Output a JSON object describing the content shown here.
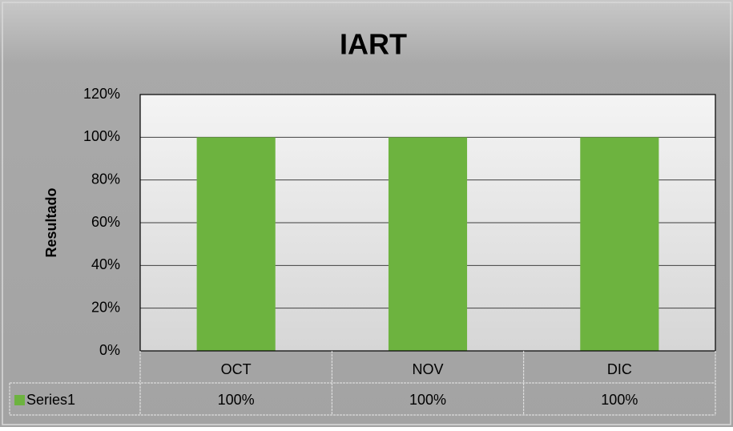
{
  "chart_data": {
    "type": "bar",
    "title": "IART",
    "ylabel": "Resultado",
    "categories": [
      "OCT",
      "NOV",
      "DIC"
    ],
    "series": [
      {
        "name": "Series1",
        "color": "#6db33f",
        "values": [
          100,
          100,
          100
        ],
        "value_labels": [
          "100%",
          "100%",
          "100%"
        ]
      }
    ],
    "ylim": [
      0,
      120
    ],
    "yticks": [
      {
        "value": 0,
        "label": "0%"
      },
      {
        "value": 20,
        "label": "20%"
      },
      {
        "value": 40,
        "label": "40%"
      },
      {
        "value": 60,
        "label": "60%"
      },
      {
        "value": 80,
        "label": "80%"
      },
      {
        "value": 100,
        "label": "100%"
      },
      {
        "value": 120,
        "label": "120%"
      }
    ],
    "grid": true,
    "data_table": true
  }
}
